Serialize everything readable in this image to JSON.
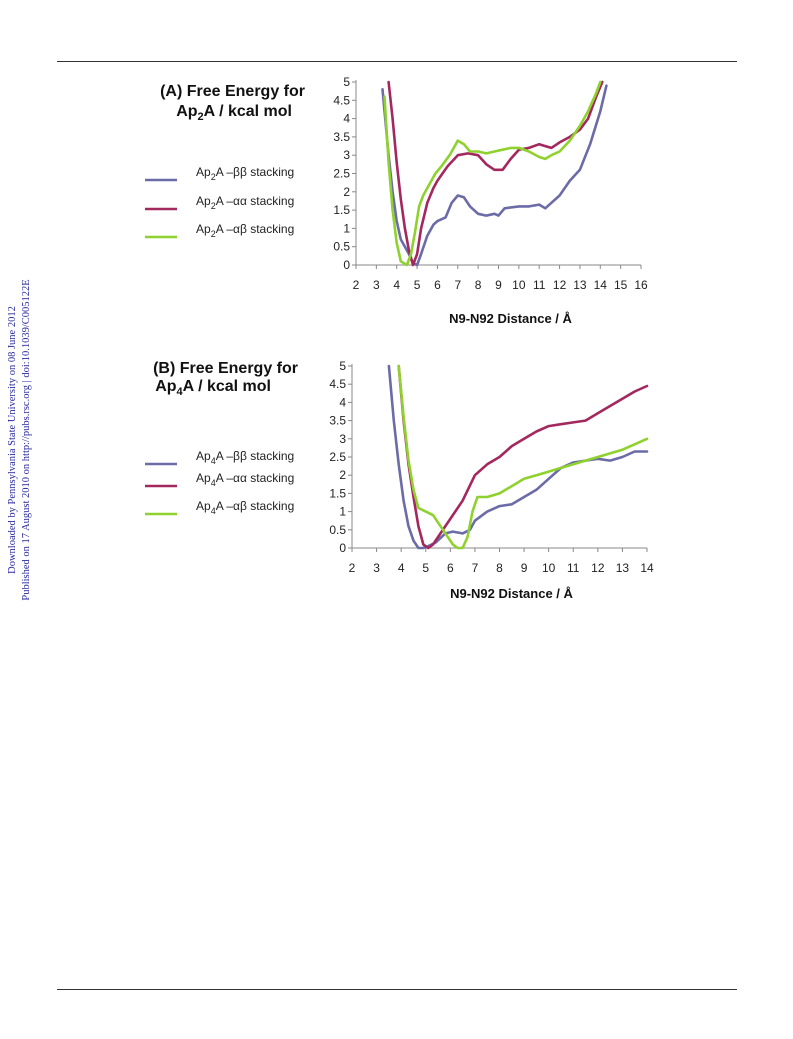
{
  "page": {
    "side_stamp_line1": "Downloaded by Pennsylvania State University on 08 June 2012",
    "side_stamp_line2": "Published on 17 August 2010 on http://pubs.rsc.org | doi:10.1039/C005122E"
  },
  "colors": {
    "bb": "#6b6ba8",
    "aa": "#a3285e",
    "ab": "#8fd12e"
  },
  "chart_data": [
    {
      "type": "line",
      "panel_label": "(A)",
      "title_line1": "(A) Free Energy for",
      "title_line2_parts": [
        "Ap",
        "2",
        "A / kcal mol"
      ],
      "xlabel": "N9-N92 Distance / Å",
      "xlim": [
        2,
        16
      ],
      "ylim": [
        0,
        5
      ],
      "xticks": [
        "2",
        "3",
        "4",
        "5",
        "6",
        "7",
        "8",
        "9",
        "10",
        "11",
        "12",
        "13",
        "14",
        "15",
        "16"
      ],
      "yticks": [
        "0",
        "0.5",
        "1",
        "1.5",
        "2",
        "2.5",
        "3",
        "3.5",
        "4",
        "4.5",
        "5"
      ],
      "grid": false,
      "series": [
        {
          "name": "Ap2A –ββ stacking",
          "label_parts": [
            "Ap",
            "2",
            "A –ββ stacking"
          ],
          "color": "#6b6ba8",
          "x": [
            3.3,
            3.6,
            3.8,
            4.0,
            4.2,
            4.4,
            4.6,
            4.8,
            5.0,
            5.2,
            5.5,
            5.8,
            6.0,
            6.4,
            6.7,
            7.0,
            7.3,
            7.6,
            8.0,
            8.4,
            8.8,
            9.0,
            9.3,
            10.0,
            10.5,
            11.0,
            11.3,
            11.6,
            12.0,
            12.5,
            13.0,
            13.5,
            14.0,
            14.3
          ],
          "y": [
            4.8,
            3.0,
            2.0,
            1.2,
            0.7,
            0.5,
            0.3,
            0.05,
            0.0,
            0.3,
            0.8,
            1.1,
            1.2,
            1.3,
            1.7,
            1.9,
            1.85,
            1.6,
            1.4,
            1.35,
            1.4,
            1.35,
            1.55,
            1.6,
            1.6,
            1.65,
            1.55,
            1.7,
            1.9,
            2.3,
            2.6,
            3.3,
            4.2,
            4.9
          ]
        },
        {
          "name": "Ap2A –αα stacking",
          "label_parts": [
            "Ap",
            "2",
            "A –αα stacking"
          ],
          "color": "#a3285e",
          "x": [
            3.6,
            3.8,
            4.0,
            4.2,
            4.4,
            4.6,
            4.8,
            5.0,
            5.2,
            5.5,
            5.8,
            6.0,
            6.5,
            7.0,
            7.5,
            8.0,
            8.4,
            8.8,
            9.2,
            9.6,
            10.0,
            10.5,
            11.0,
            11.3,
            11.6,
            12.0,
            12.5,
            13.0,
            13.4,
            13.8,
            14.1
          ],
          "y": [
            5.0,
            4.0,
            2.8,
            1.8,
            1.0,
            0.4,
            0.0,
            0.3,
            1.0,
            1.7,
            2.1,
            2.3,
            2.7,
            3.0,
            3.05,
            3.0,
            2.75,
            2.6,
            2.6,
            2.9,
            3.15,
            3.2,
            3.3,
            3.25,
            3.2,
            3.35,
            3.5,
            3.7,
            4.0,
            4.6,
            5.0
          ]
        },
        {
          "name": "Ap2A –αβ stacking",
          "label_parts": [
            "Ap",
            "2",
            "A –αβ stacking"
          ],
          "color": "#8fd12e",
          "x": [
            3.4,
            3.6,
            3.8,
            4.0,
            4.2,
            4.5,
            4.7,
            4.9,
            5.1,
            5.3,
            5.6,
            5.9,
            6.2,
            6.6,
            7.0,
            7.3,
            7.6,
            8.0,
            8.4,
            8.8,
            9.2,
            9.6,
            10.0,
            10.5,
            11.0,
            11.3,
            11.6,
            12.0,
            12.5,
            13.0,
            13.4,
            13.8,
            14.0
          ],
          "y": [
            4.6,
            2.8,
            1.5,
            0.6,
            0.1,
            0.0,
            0.3,
            0.9,
            1.6,
            1.9,
            2.2,
            2.5,
            2.7,
            3.0,
            3.4,
            3.3,
            3.1,
            3.1,
            3.05,
            3.1,
            3.15,
            3.2,
            3.2,
            3.1,
            2.95,
            2.9,
            3.0,
            3.1,
            3.4,
            3.8,
            4.2,
            4.7,
            5.0
          ]
        }
      ]
    },
    {
      "type": "line",
      "panel_label": "(B)",
      "title_line1": "(B) Free Energy for",
      "title_line2_parts": [
        "Ap",
        "4",
        "A / kcal mol"
      ],
      "xlabel": "N9-N92 Distance / Å",
      "xlim": [
        2,
        14
      ],
      "ylim": [
        0,
        5
      ],
      "xticks": [
        "2",
        "3",
        "4",
        "5",
        "6",
        "7",
        "8",
        "9",
        "10",
        "11",
        "12",
        "13",
        "14"
      ],
      "yticks": [
        "0",
        "0.5",
        "1",
        "1.5",
        "2",
        "2.5",
        "3",
        "3.5",
        "4",
        "4.5",
        "5"
      ],
      "grid": false,
      "series": [
        {
          "name": "Ap4A –ββ stacking",
          "label_parts": [
            "Ap",
            "4",
            "A –ββ stacking"
          ],
          "color": "#6b6ba8",
          "x": [
            3.5,
            3.7,
            3.9,
            4.1,
            4.3,
            4.5,
            4.7,
            4.9,
            5.1,
            5.4,
            5.8,
            6.1,
            6.5,
            6.8,
            7.0,
            7.5,
            8.0,
            8.5,
            9.0,
            9.5,
            10.0,
            10.5,
            11.0,
            11.5,
            12.0,
            12.5,
            13.0,
            13.5,
            14.0
          ],
          "y": [
            5.0,
            3.5,
            2.3,
            1.3,
            0.6,
            0.2,
            0.0,
            0.0,
            0.05,
            0.15,
            0.4,
            0.45,
            0.4,
            0.5,
            0.75,
            1.0,
            1.15,
            1.2,
            1.4,
            1.6,
            1.9,
            2.2,
            2.35,
            2.4,
            2.45,
            2.4,
            2.5,
            2.65,
            2.65
          ]
        },
        {
          "name": "Ap4A –αα stacking",
          "label_parts": [
            "Ap",
            "4",
            "A –αα stacking"
          ],
          "color": "#a3285e",
          "x": [
            3.9,
            4.1,
            4.3,
            4.5,
            4.7,
            4.9,
            5.1,
            5.3,
            5.6,
            6.0,
            6.5,
            7.0,
            7.5,
            8.0,
            8.5,
            9.0,
            9.5,
            10.0,
            10.5,
            11.0,
            11.5,
            12.0,
            12.5,
            13.0,
            13.5,
            14.0
          ],
          "y": [
            5.0,
            3.5,
            2.3,
            1.4,
            0.6,
            0.1,
            0.0,
            0.1,
            0.4,
            0.8,
            1.3,
            2.0,
            2.3,
            2.5,
            2.8,
            3.0,
            3.2,
            3.35,
            3.4,
            3.45,
            3.5,
            3.7,
            3.9,
            4.1,
            4.3,
            4.45
          ]
        },
        {
          "name": "Ap4A –αβ stacking",
          "label_parts": [
            "Ap",
            "4",
            "A –αβ stacking"
          ],
          "color": "#8fd12e",
          "x": [
            3.9,
            4.1,
            4.3,
            4.5,
            4.7,
            5.0,
            5.3,
            5.6,
            5.9,
            6.1,
            6.3,
            6.5,
            6.7,
            6.9,
            7.1,
            7.5,
            8.0,
            8.5,
            9.0,
            9.5,
            10.0,
            10.5,
            11.0,
            11.5,
            12.0,
            12.5,
            13.0,
            13.5,
            14.0
          ],
          "y": [
            5.0,
            3.6,
            2.4,
            1.6,
            1.1,
            1.0,
            0.9,
            0.6,
            0.3,
            0.1,
            0.0,
            0.0,
            0.3,
            1.0,
            1.4,
            1.4,
            1.5,
            1.7,
            1.9,
            2.0,
            2.1,
            2.2,
            2.3,
            2.4,
            2.5,
            2.6,
            2.7,
            2.85,
            3.0
          ]
        }
      ]
    }
  ]
}
